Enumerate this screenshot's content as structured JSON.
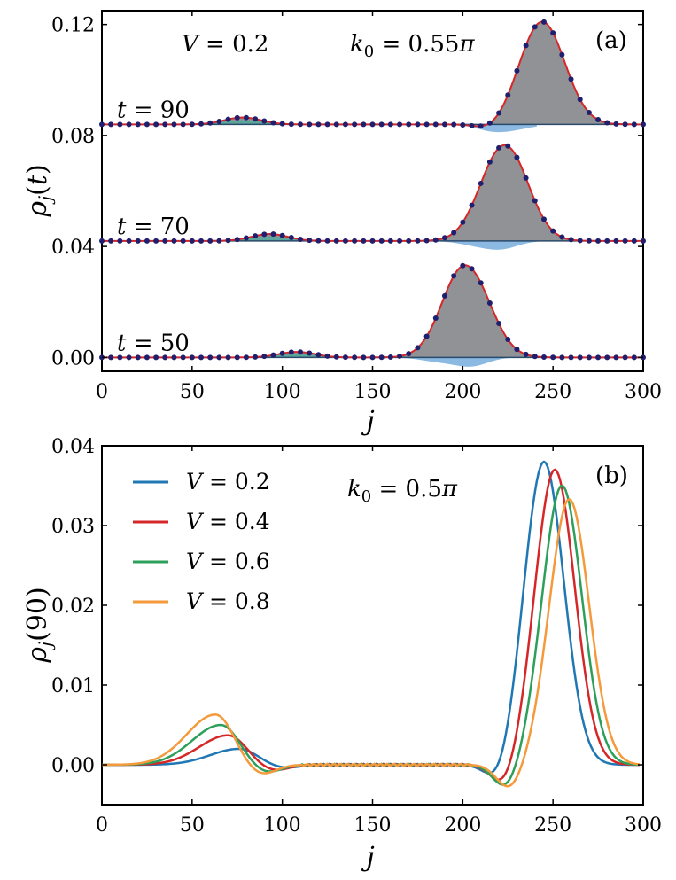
{
  "chart_data": [
    {
      "panel": "(a)",
      "type": "line",
      "xlabel": "j",
      "ylabel": "ρ_j(t)",
      "xlim": [
        0,
        300
      ],
      "ylim": [
        -0.005,
        0.125
      ],
      "xticks": [
        0,
        50,
        100,
        150,
        200,
        250,
        300
      ],
      "yticks": [
        0.0,
        0.04,
        0.08,
        0.12
      ],
      "ytick_labels": [
        "0.00",
        "0.04",
        "0.08",
        "0.12"
      ],
      "annotations": [
        "V = 0.2",
        "k_0 = 0.55π"
      ],
      "offset_per_curve": 0.042,
      "curve_labels": [
        "t = 50",
        "t = 70",
        "t = 90"
      ],
      "series": [
        {
          "name": "t = 50",
          "t": 50,
          "baseline": 0.0,
          "peak_center": 202,
          "peak_height": 0.036,
          "bump_center": 108,
          "bump_height": 0.002,
          "dip_center": 205,
          "dip_depth": 0.003
        },
        {
          "name": "t = 70",
          "t": 70,
          "baseline": 0.042,
          "peak_center": 223,
          "peak_height": 0.037,
          "bump_center": 93,
          "bump_height": 0.0025,
          "dip_center": 222,
          "dip_depth": 0.0025
        },
        {
          "name": "t = 90",
          "t": 90,
          "baseline": 0.084,
          "peak_center": 244,
          "peak_height": 0.037,
          "bump_center": 78,
          "bump_height": 0.0025,
          "dip_center": 216,
          "dip_depth": 0.002
        }
      ],
      "colors": {
        "line": "#d62728",
        "dots": "#1f1f6e",
        "fill": "#6b6e73",
        "blue_fill": "#5a9bd4"
      }
    },
    {
      "panel": "(b)",
      "type": "line",
      "xlabel": "j",
      "ylabel": "ρ_j(90)",
      "xlim": [
        0,
        300
      ],
      "ylim": [
        -0.005,
        0.04
      ],
      "xticks": [
        0,
        50,
        100,
        150,
        200,
        250,
        300
      ],
      "yticks": [
        0.0,
        0.01,
        0.02,
        0.03,
        0.04
      ],
      "ytick_labels": [
        "0.00",
        "0.01",
        "0.02",
        "0.03",
        "0.04"
      ],
      "annotations": [
        "k_0 = 0.5π"
      ],
      "series": [
        {
          "name": "V = 0.2",
          "color": "#1f77b4",
          "peak_center": 245,
          "peak_height": 0.038,
          "peak_width": 11,
          "bump_center": 76,
          "bump_height": 0.002,
          "dip_center": 220,
          "dip_depth": 0.0025
        },
        {
          "name": "V = 0.4",
          "color": "#d62728",
          "peak_center": 251,
          "peak_height": 0.037,
          "peak_width": 11,
          "bump_center": 70,
          "bump_height": 0.0037,
          "dip_center": 223,
          "dip_depth": 0.0028
        },
        {
          "name": "V = 0.6",
          "color": "#2ca05a",
          "peak_center": 255,
          "peak_height": 0.035,
          "peak_width": 11,
          "bump_center": 66,
          "bump_height": 0.005,
          "dip_center": 224,
          "dip_depth": 0.003
        },
        {
          "name": "V = 0.8",
          "color": "#f59a3b",
          "peak_center": 259,
          "peak_height": 0.0333,
          "peak_width": 11,
          "bump_center": 63,
          "bump_height": 0.0063,
          "dip_center": 226,
          "dip_depth": 0.003
        }
      ]
    }
  ]
}
